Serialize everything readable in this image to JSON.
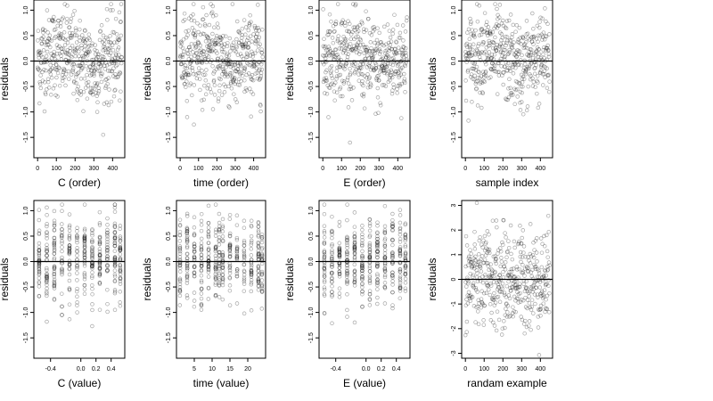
{
  "chart_data": [
    {
      "type": "scatter",
      "xlabel": "C (order)",
      "ylabel": "residuals",
      "xlim": [
        -20,
        465
      ],
      "ylim": [
        -1.9,
        1.2
      ],
      "xticks": [
        0,
        100,
        200,
        300,
        400
      ],
      "yticks": [
        -1.5,
        -1.0,
        -0.5,
        0.0,
        0.5,
        1.0
      ],
      "hline": 0,
      "n_points": 450,
      "pattern": "order",
      "points": []
    },
    {
      "type": "scatter",
      "xlabel": "time (order)",
      "ylabel": "residuals",
      "xlim": [
        -20,
        465
      ],
      "ylim": [
        -1.9,
        1.2
      ],
      "xticks": [
        0,
        100,
        200,
        300,
        400
      ],
      "yticks": [
        -1.5,
        -1.0,
        -0.5,
        0.0,
        0.5,
        1.0
      ],
      "hline": 0,
      "n_points": 450,
      "pattern": "order",
      "points": []
    },
    {
      "type": "scatter",
      "xlabel": "E (order)",
      "ylabel": "residuals",
      "xlim": [
        -20,
        465
      ],
      "ylim": [
        -1.9,
        1.2
      ],
      "xticks": [
        0,
        100,
        200,
        300,
        400
      ],
      "yticks": [
        -1.5,
        -1.0,
        -0.5,
        0.0,
        0.5,
        1.0
      ],
      "hline": 0,
      "n_points": 450,
      "pattern": "order",
      "points": []
    },
    {
      "type": "scatter",
      "xlabel": "sample index",
      "ylabel": "residuals",
      "xlim": [
        -20,
        465
      ],
      "ylim": [
        -1.9,
        1.2
      ],
      "xticks": [
        0,
        100,
        200,
        300,
        400
      ],
      "yticks": [
        -1.5,
        -1.0,
        -0.5,
        0.0,
        0.5,
        1.0
      ],
      "hline": 0,
      "n_points": 450,
      "pattern": "order",
      "points": []
    },
    {
      "type": "scatter",
      "xlabel": "C (value)",
      "ylabel": "residuals",
      "xlim": [
        -0.62,
        0.58
      ],
      "ylim": [
        -1.9,
        1.2
      ],
      "xticks": [
        -0.4,
        0.0,
        0.2,
        0.4
      ],
      "yticks": [
        -1.5,
        -1.0,
        -0.5,
        0.0,
        0.5,
        1.0
      ],
      "hline": 0,
      "n_points": 450,
      "pattern": "discrete",
      "levels": [
        -0.55,
        -0.45,
        -0.35,
        -0.25,
        -0.15,
        -0.05,
        0.05,
        0.15,
        0.25,
        0.35,
        0.45,
        0.52
      ],
      "points": []
    },
    {
      "type": "scatter",
      "xlabel": "time (value)",
      "ylabel": "residuals",
      "xlim": [
        0,
        25
      ],
      "ylim": [
        -1.9,
        1.2
      ],
      "xticks": [
        5,
        10,
        15,
        20
      ],
      "yticks": [
        -1.5,
        -1.0,
        -0.5,
        0.0,
        0.5,
        1.0
      ],
      "hline": 0,
      "n_points": 450,
      "pattern": "discrete",
      "levels": [
        1,
        3,
        5,
        7,
        9,
        11,
        12,
        13,
        15,
        17,
        19,
        21,
        23,
        24
      ],
      "points": []
    },
    {
      "type": "scatter",
      "xlabel": "E (value)",
      "ylabel": "residuals",
      "xlim": [
        -0.62,
        0.58
      ],
      "ylim": [
        -1.9,
        1.2
      ],
      "xticks": [
        -0.4,
        0.0,
        0.2,
        0.4
      ],
      "yticks": [
        -1.5,
        -1.0,
        -0.5,
        0.0,
        0.5,
        1.0
      ],
      "hline": 0,
      "n_points": 450,
      "pattern": "discrete",
      "levels": [
        -0.55,
        -0.45,
        -0.35,
        -0.25,
        -0.15,
        -0.05,
        0.05,
        0.15,
        0.25,
        0.35,
        0.45,
        0.52
      ],
      "points": []
    },
    {
      "type": "scatter",
      "xlabel": "randam example",
      "ylabel": "residuals",
      "xlim": [
        -20,
        465
      ],
      "ylim": [
        -3.2,
        3.2
      ],
      "xticks": [
        0,
        100,
        200,
        300,
        400
      ],
      "yticks": [
        -3,
        -2,
        -1,
        0,
        1,
        2,
        3
      ],
      "hline": 0,
      "n_points": 450,
      "pattern": "normal",
      "points": []
    }
  ]
}
